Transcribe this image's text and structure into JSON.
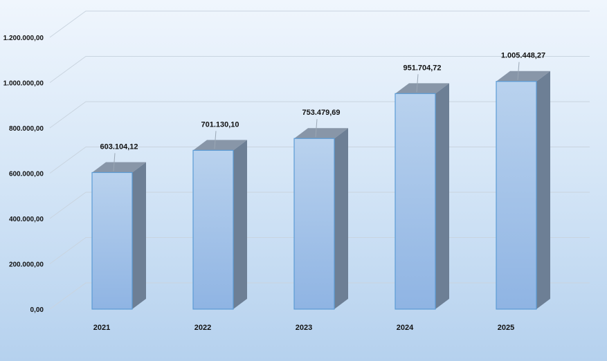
{
  "chart_data": {
    "type": "bar",
    "categories": [
      "2021",
      "2022",
      "2023",
      "2024",
      "2025"
    ],
    "values": [
      603104.12,
      701130.1,
      753479.69,
      951704.72,
      1005448.27
    ],
    "value_labels": [
      "603.104,12",
      "701.130,10",
      "753.479,69",
      "951.704,72",
      "1.005.448,27"
    ],
    "y_ticks": [
      0,
      200000,
      400000,
      600000,
      800000,
      1000000,
      1200000
    ],
    "y_tick_labels": [
      "0,00",
      "200.000,00",
      "400.000,00",
      "600.000,00",
      "800.000,00",
      "1.000.000,00",
      "1.200.000,00"
    ],
    "ylim": [
      0,
      1200000
    ],
    "grid": true,
    "legend": "none",
    "style": "3d-column",
    "colors": {
      "bar_front_top": "#b9d2ee",
      "bar_front_bottom": "#8fb4e3",
      "bar_side": "#6d7f95",
      "bar_top": "#8896a8",
      "bar_edge": "#5b9bd5",
      "grid": "#c9d4df"
    }
  }
}
